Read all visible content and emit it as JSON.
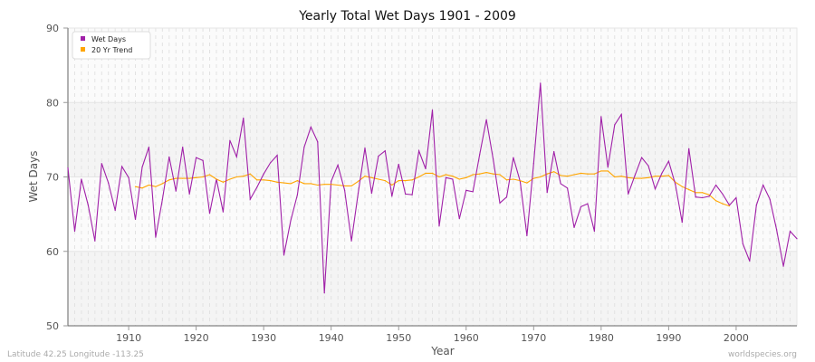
{
  "chart_data": {
    "type": "line",
    "title": "Yearly Total Wet Days 1901 - 2009",
    "xlabel": "Year",
    "ylabel": "Wet Days",
    "xlim": [
      1901,
      2009
    ],
    "ylim": [
      50,
      90
    ],
    "xticks": [
      1910,
      1920,
      1930,
      1940,
      1950,
      1960,
      1970,
      1980,
      1990,
      2000
    ],
    "yticks": [
      50,
      60,
      70,
      80,
      90
    ],
    "grid": true,
    "legend_position": "top-left",
    "series": [
      {
        "name": "Wet Days",
        "color": "#a020a8",
        "x_start": 1901,
        "values": [
          71.2,
          62.7,
          69.7,
          66.2,
          61.4,
          71.8,
          69.2,
          65.5,
          71.4,
          69.9,
          64.3,
          71.3,
          74.0,
          61.9,
          67.0,
          72.7,
          68.1,
          74.0,
          67.7,
          72.6,
          72.2,
          65.1,
          69.7,
          65.3,
          74.9,
          72.7,
          77.9,
          67.0,
          68.6,
          70.4,
          71.9,
          72.9,
          59.5,
          64.1,
          67.6,
          74.0,
          76.7,
          74.7,
          54.4,
          69.4,
          71.6,
          68.2,
          61.4,
          67.8,
          73.9,
          67.8,
          72.8,
          73.5,
          67.4,
          71.7,
          67.7,
          67.6,
          73.5,
          71.1,
          79.0,
          63.4,
          69.9,
          69.7,
          64.4,
          68.2,
          68.0,
          73.0,
          77.7,
          72.4,
          66.5,
          67.3,
          72.6,
          69.4,
          62.1,
          71.8,
          82.6,
          67.9,
          73.4,
          69.1,
          68.5,
          63.2,
          66.0,
          66.4,
          62.7,
          78.1,
          71.3,
          77.0,
          78.4,
          67.7,
          70.2,
          72.6,
          71.5,
          68.4,
          70.5,
          72.1,
          69.0,
          63.9,
          73.8,
          67.3,
          67.2,
          67.4,
          68.9,
          67.7,
          66.2,
          67.2,
          61.0,
          58.7,
          66.2,
          68.9,
          67.0,
          62.9,
          58.0,
          62.7,
          61.7
        ]
      },
      {
        "name": "20 Yr Trend",
        "color": "#ffa500",
        "x_start": 1911,
        "values": [
          68.7,
          68.5,
          68.9,
          68.7,
          69.1,
          69.6,
          69.8,
          69.8,
          69.8,
          69.9,
          70.0,
          70.3,
          69.7,
          69.3,
          69.7,
          70.0,
          70.1,
          70.4,
          69.6,
          69.6,
          69.5,
          69.3,
          69.2,
          69.1,
          69.5,
          69.1,
          69.1,
          68.9,
          69.0,
          69.0,
          68.9,
          68.8,
          68.8,
          69.4,
          70.1,
          69.9,
          69.7,
          69.5,
          68.9,
          69.5,
          69.5,
          69.6,
          70.0,
          70.5,
          70.5,
          70.0,
          70.3,
          70.1,
          69.7,
          69.9,
          70.3,
          70.4,
          70.6,
          70.4,
          70.3,
          69.6,
          69.7,
          69.5,
          69.2,
          69.8,
          70.0,
          70.4,
          70.7,
          70.2,
          70.1,
          70.3,
          70.5,
          70.4,
          70.4,
          70.8,
          70.8,
          70.0,
          70.1,
          69.9,
          69.8,
          69.8,
          69.9,
          70.1,
          70.1,
          70.2,
          69.3,
          68.7,
          68.3,
          67.9,
          67.9,
          67.6,
          66.8,
          66.4,
          66.1
        ]
      }
    ]
  },
  "footer": {
    "location": "Latitude 42.25 Longitude -113.25",
    "source": "worldspecies.org"
  }
}
